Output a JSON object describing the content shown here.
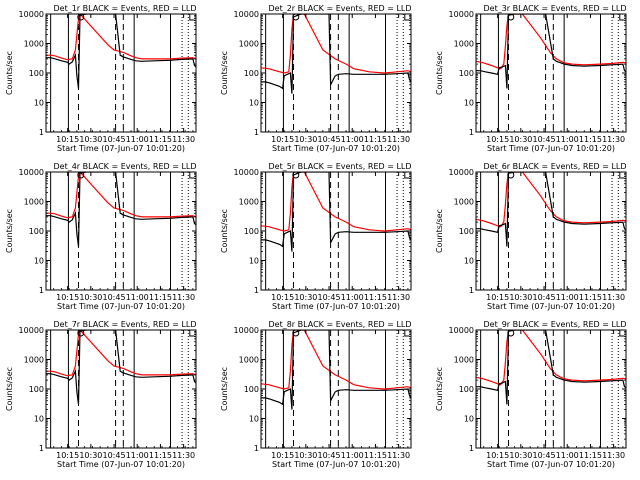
{
  "panels": [
    {
      "title": "Det_1r BLACK = Events, RED = LLD",
      "style": "a"
    },
    {
      "title": "Det_2r BLACK = Events, RED = LLD",
      "style": "b"
    },
    {
      "title": "Det_3r BLACK = Events, RED = LLD",
      "style": "c"
    },
    {
      "title": "Det_4r BLACK = Events, RED = LLD",
      "style": "a"
    },
    {
      "title": "Det_5r BLACK = Events, RED = LLD",
      "style": "b"
    },
    {
      "title": "Det_6r BLACK = Events, RED = LLD",
      "style": "c"
    },
    {
      "title": "Det_7r BLACK = Events, RED = LLD",
      "style": "a"
    },
    {
      "title": "Det_8r BLACK = Events, RED = LLD",
      "style": "b"
    },
    {
      "title": "Det_9r BLACK = Events, RED = LLD",
      "style": "c"
    }
  ],
  "xlabel": "Start Time (07-Jun-07 10:01:20)",
  "ylabel": "Counts/sec",
  "x_ticks": [
    {
      "t": 14,
      "label": "10:15"
    },
    {
      "t": 29,
      "label": "10:30"
    },
    {
      "t": 44,
      "label": "10:45"
    },
    {
      "t": 59,
      "label": "11:00"
    },
    {
      "t": 74,
      "label": "11:15"
    },
    {
      "t": 89,
      "label": "11:30"
    }
  ],
  "y_ticks": [
    {
      "v": 1,
      "label": "1"
    },
    {
      "v": 10,
      "label": "10"
    },
    {
      "v": 100,
      "label": "100"
    },
    {
      "v": 1000,
      "label": "1000"
    },
    {
      "v": 10000,
      "label": "10000"
    }
  ],
  "colors": {
    "events": "#000000",
    "lld": "#ff0000"
  },
  "chart_data": {
    "type": "line",
    "scale_y": "log",
    "xlim_minutes_after_start": [
      0,
      97
    ],
    "ylim": [
      1,
      10000
    ],
    "vlines": {
      "solid": [
        3,
        14.5,
        57,
        80.5
      ],
      "dashed": [
        21,
        45,
        50
      ],
      "dotted": [
        88,
        92
      ]
    },
    "series_styles": {
      "a": {
        "lld": [
          [
            0,
            400
          ],
          [
            3,
            400
          ],
          [
            6,
            380
          ],
          [
            10,
            320
          ],
          [
            14,
            280
          ],
          [
            15,
            290
          ],
          [
            17,
            300
          ],
          [
            19,
            600
          ],
          [
            20,
            2000
          ],
          [
            21,
            7000
          ],
          [
            22,
            10000
          ],
          [
            40,
            900
          ],
          [
            44,
            600
          ],
          [
            50,
            500
          ],
          [
            54,
            400
          ],
          [
            58,
            330
          ],
          [
            62,
            300
          ],
          [
            70,
            300
          ],
          [
            80,
            300
          ],
          [
            88,
            320
          ],
          [
            95,
            330
          ],
          [
            97,
            300
          ]
        ],
        "events": [
          [
            0,
            330
          ],
          [
            3,
            330
          ],
          [
            6,
            300
          ],
          [
            10,
            260
          ],
          [
            14,
            230
          ],
          [
            15,
            200
          ],
          [
            17,
            240
          ],
          [
            19,
            400
          ],
          [
            20,
            80
          ],
          [
            21,
            30
          ],
          [
            22,
            9000
          ],
          [
            26,
            10000
          ],
          [
            45,
            10000
          ],
          [
            48,
            400
          ],
          [
            50,
            350
          ],
          [
            54,
            300
          ],
          [
            58,
            260
          ],
          [
            62,
            250
          ],
          [
            70,
            260
          ],
          [
            80,
            270
          ],
          [
            88,
            290
          ],
          [
            95,
            300
          ],
          [
            96,
            180
          ],
          [
            97,
            160
          ]
        ]
      },
      "b": {
        "lld": [
          [
            0,
            150
          ],
          [
            5,
            140
          ],
          [
            12,
            110
          ],
          [
            15,
            100
          ],
          [
            18,
            110
          ],
          [
            19,
            400
          ],
          [
            20,
            3000
          ],
          [
            21,
            10000
          ],
          [
            28,
            10000
          ],
          [
            40,
            600
          ],
          [
            48,
            300
          ],
          [
            55,
            200
          ],
          [
            60,
            140
          ],
          [
            70,
            110
          ],
          [
            80,
            100
          ],
          [
            88,
            110
          ],
          [
            95,
            120
          ],
          [
            97,
            110
          ]
        ],
        "events": [
          [
            0,
            50
          ],
          [
            3,
            50
          ],
          [
            6,
            45
          ],
          [
            12,
            35
          ],
          [
            14,
            30
          ],
          [
            15,
            80
          ],
          [
            17,
            90
          ],
          [
            19,
            100
          ],
          [
            20,
            20
          ],
          [
            21,
            8000
          ],
          [
            26,
            10000
          ],
          [
            44,
            10000
          ],
          [
            45,
            40
          ],
          [
            48,
            80
          ],
          [
            50,
            90
          ],
          [
            55,
            95
          ],
          [
            60,
            90
          ],
          [
            70,
            90
          ],
          [
            80,
            90
          ],
          [
            88,
            95
          ],
          [
            95,
            100
          ],
          [
            96,
            60
          ],
          [
            97,
            50
          ]
        ]
      },
      "c": {
        "lld": [
          [
            0,
            250
          ],
          [
            5,
            220
          ],
          [
            10,
            180
          ],
          [
            14,
            150
          ],
          [
            16,
            140
          ],
          [
            18,
            200
          ],
          [
            19,
            800
          ],
          [
            20,
            4000
          ],
          [
            21,
            10000
          ],
          [
            30,
            10000
          ],
          [
            42,
            1500
          ],
          [
            48,
            500
          ],
          [
            52,
            300
          ],
          [
            57,
            220
          ],
          [
            62,
            200
          ],
          [
            70,
            190
          ],
          [
            80,
            200
          ],
          [
            88,
            210
          ],
          [
            95,
            230
          ],
          [
            97,
            220
          ]
        ],
        "events": [
          [
            0,
            120
          ],
          [
            3,
            120
          ],
          [
            6,
            110
          ],
          [
            10,
            100
          ],
          [
            14,
            90
          ],
          [
            15,
            150
          ],
          [
            17,
            160
          ],
          [
            19,
            180
          ],
          [
            20,
            30
          ],
          [
            21,
            9000
          ],
          [
            25,
            10000
          ],
          [
            45,
            10000
          ],
          [
            50,
            300
          ],
          [
            52,
            250
          ],
          [
            57,
            200
          ],
          [
            62,
            180
          ],
          [
            70,
            170
          ],
          [
            80,
            180
          ],
          [
            88,
            190
          ],
          [
            95,
            200
          ],
          [
            96,
            120
          ],
          [
            97,
            110
          ]
        ]
      }
    }
  }
}
